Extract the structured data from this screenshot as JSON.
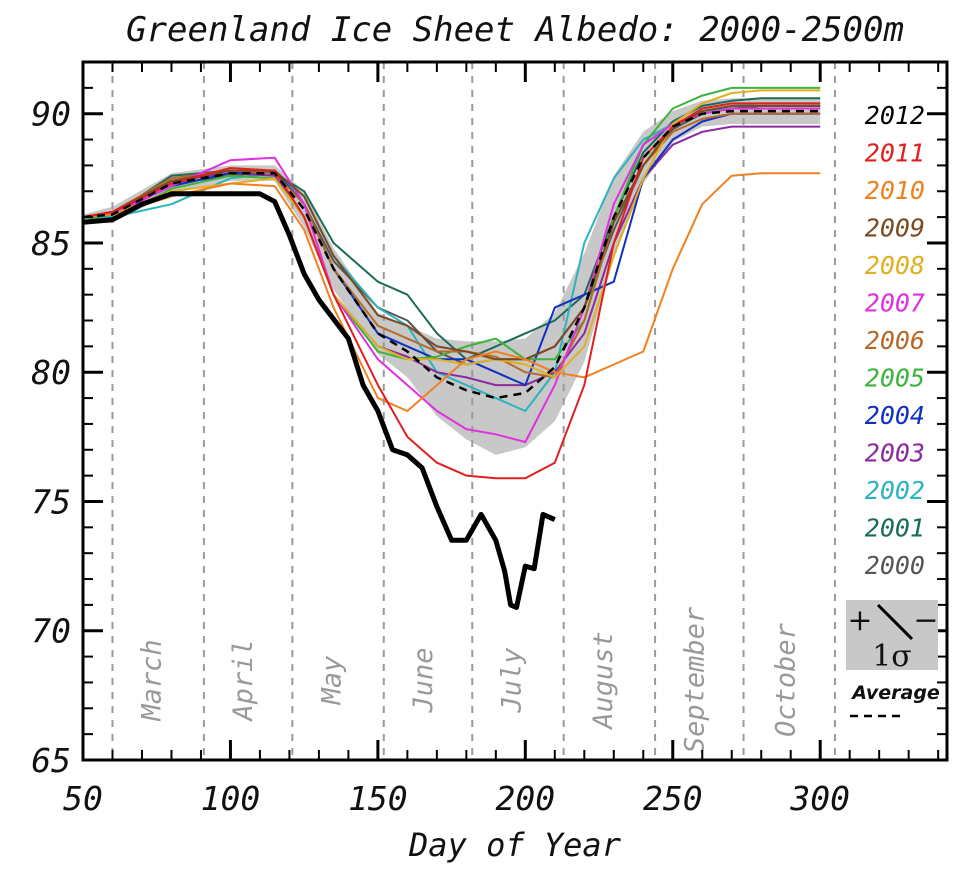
{
  "chart_data": {
    "type": "line",
    "title": "Greenland Ice Sheet Albedo: 2000-2500m",
    "xlabel": "Day of Year",
    "ylabel": "",
    "xlim": [
      50,
      343
    ],
    "ylim": [
      65,
      92
    ],
    "x_ticks": [
      50,
      100,
      150,
      200,
      250,
      300
    ],
    "x_tick_labels": [
      "50",
      "100",
      "150",
      "200",
      "250",
      "300"
    ],
    "y_ticks": [
      65,
      70,
      75,
      80,
      85,
      90
    ],
    "y_tick_labels": [
      "65",
      "70",
      "75",
      "80",
      "85",
      "90"
    ],
    "month_boundaries": [
      60,
      91,
      121,
      152,
      182,
      213,
      244,
      274,
      305
    ],
    "months": [
      {
        "label": "March",
        "day": 75
      },
      {
        "label": "April",
        "day": 106
      },
      {
        "label": "May",
        "day": 136
      },
      {
        "label": "June",
        "day": 167
      },
      {
        "label": "July",
        "day": 197
      },
      {
        "label": "August",
        "day": 228
      },
      {
        "label": "September",
        "day": 259
      },
      {
        "label": "October",
        "day": 290
      }
    ],
    "series": [
      {
        "name": "2000",
        "color": "#555555",
        "x": [
          50,
          60,
          80,
          100,
          115,
          125,
          135,
          150,
          160,
          170,
          180,
          190,
          200,
          210,
          220,
          230,
          240,
          250,
          260,
          270,
          280,
          290,
          300
        ],
        "y": [
          86,
          86.2,
          87.3,
          87.6,
          87.8,
          86.5,
          84.3,
          82.5,
          82,
          80.8,
          80.3,
          80.5,
          80.5,
          81,
          82.5,
          85.5,
          88,
          89.4,
          90,
          90.2,
          90.3,
          90.3,
          90.3
        ]
      },
      {
        "name": "2001",
        "color": "#1a6b5a",
        "x": [
          50,
          60,
          80,
          100,
          115,
          125,
          135,
          150,
          160,
          170,
          180,
          190,
          200,
          210,
          220,
          230,
          240,
          250,
          260,
          270,
          280,
          290,
          300
        ],
        "y": [
          86,
          86.1,
          87.6,
          87.8,
          87.7,
          87,
          85,
          83.5,
          83,
          81.5,
          80.5,
          81,
          81.5,
          82,
          83,
          86,
          88.5,
          89.7,
          90.3,
          90.5,
          90.6,
          90.6,
          90.6
        ]
      },
      {
        "name": "2002",
        "color": "#2bb3c0",
        "x": [
          50,
          60,
          80,
          100,
          115,
          125,
          135,
          150,
          160,
          170,
          180,
          190,
          200,
          210,
          220,
          230,
          240,
          250,
          260,
          270,
          280,
          290,
          300
        ],
        "y": [
          86,
          86,
          86.5,
          87.5,
          87.7,
          86.8,
          84.5,
          82.5,
          81.8,
          80,
          79.5,
          79,
          78.5,
          80,
          85,
          87.5,
          89,
          89.6,
          90,
          90.3,
          90.4,
          90.4,
          90.4
        ]
      },
      {
        "name": "2003",
        "color": "#8a2ba0",
        "x": [
          50,
          60,
          80,
          100,
          115,
          125,
          135,
          150,
          160,
          170,
          180,
          190,
          200,
          210,
          220,
          230,
          240,
          250,
          260,
          270,
          280,
          290,
          300
        ],
        "y": [
          86,
          86.1,
          87.4,
          87.7,
          87.6,
          86,
          83,
          81,
          80.6,
          80,
          79.8,
          79.5,
          79.5,
          80,
          81.5,
          85,
          87.5,
          88.8,
          89.3,
          89.5,
          89.5,
          89.5,
          89.5
        ]
      },
      {
        "name": "2004",
        "color": "#1030c0",
        "x": [
          50,
          60,
          80,
          100,
          115,
          125,
          135,
          150,
          160,
          170,
          180,
          190,
          200,
          210,
          220,
          230,
          240,
          250,
          260,
          270,
          280,
          290,
          300
        ],
        "y": [
          86,
          86.1,
          87.2,
          87.7,
          87.8,
          86.5,
          84,
          81.5,
          81,
          80.5,
          80.5,
          80,
          79.5,
          82.5,
          83,
          83.5,
          87.5,
          89,
          89.7,
          90,
          90,
          90,
          90
        ]
      },
      {
        "name": "2005",
        "color": "#3cb33c",
        "x": [
          50,
          60,
          80,
          100,
          115,
          125,
          135,
          150,
          160,
          170,
          180,
          190,
          200,
          210,
          220,
          230,
          240,
          250,
          260,
          270,
          280,
          290,
          300
        ],
        "y": [
          86,
          85.9,
          87.1,
          87.6,
          87.5,
          86,
          83,
          80.8,
          80.5,
          80.6,
          81,
          81.3,
          80.5,
          80.5,
          82,
          86,
          88.8,
          90.2,
          90.7,
          91,
          91,
          91,
          91
        ]
      },
      {
        "name": "2006",
        "color": "#b8692a",
        "x": [
          50,
          60,
          80,
          100,
          115,
          125,
          135,
          150,
          160,
          170,
          180,
          190,
          200,
          210,
          220,
          230,
          240,
          250,
          260,
          270,
          280,
          290,
          300
        ],
        "y": [
          86,
          86.2,
          87.5,
          87.8,
          87.7,
          86.5,
          84,
          81.8,
          81.3,
          80.8,
          80.8,
          80.6,
          80,
          79.8,
          82,
          85.8,
          88,
          89.3,
          89.8,
          90,
          90,
          90,
          90
        ]
      },
      {
        "name": "2007",
        "color": "#e030e0",
        "x": [
          50,
          60,
          80,
          100,
          115,
          125,
          135,
          150,
          160,
          170,
          180,
          190,
          200,
          210,
          220,
          230,
          240,
          250,
          260,
          270,
          280,
          290,
          300
        ],
        "y": [
          86,
          86.1,
          87.2,
          88.2,
          88.3,
          86.5,
          83,
          80.5,
          79.5,
          78.5,
          77.8,
          77.6,
          77.3,
          79.5,
          82.5,
          86.5,
          88.8,
          89.6,
          90,
          90.2,
          90.2,
          90.2,
          90.2
        ]
      },
      {
        "name": "2008",
        "color": "#e0b020",
        "x": [
          50,
          60,
          80,
          100,
          115,
          125,
          135,
          150,
          160,
          170,
          180,
          190,
          200,
          210,
          220,
          230,
          240,
          250,
          260,
          270,
          280,
          290,
          300
        ],
        "y": [
          86,
          86.1,
          87,
          87.3,
          87.5,
          86,
          83,
          81,
          80.5,
          80.5,
          80.3,
          80.5,
          80.3,
          79.8,
          81,
          84.5,
          87.5,
          89.6,
          90.4,
          90.8,
          90.9,
          90.9,
          90.9
        ]
      },
      {
        "name": "2009",
        "color": "#7a4a20",
        "x": [
          50,
          60,
          80,
          100,
          115,
          125,
          135,
          150,
          160,
          170,
          180,
          190,
          200,
          210,
          220,
          230,
          240,
          250,
          260,
          270,
          280,
          290,
          300
        ],
        "y": [
          86,
          86.2,
          87.4,
          87.8,
          87.8,
          86.8,
          84.5,
          82.2,
          81.8,
          81,
          80.8,
          80.5,
          80.5,
          81,
          82.5,
          85.8,
          88,
          89.5,
          90.1,
          90.3,
          90.3,
          90.3,
          90.3
        ]
      },
      {
        "name": "2010",
        "color": "#f08020",
        "x": [
          50,
          60,
          80,
          100,
          115,
          125,
          135,
          150,
          160,
          170,
          180,
          190,
          200,
          210,
          220,
          230,
          240,
          250,
          260,
          270,
          280,
          290,
          300
        ],
        "y": [
          86,
          86.1,
          86.8,
          87.3,
          87.2,
          85.5,
          82.5,
          79,
          78.5,
          79.5,
          80.5,
          80.8,
          80.5,
          80,
          79.8,
          80.3,
          80.8,
          84,
          86.5,
          87.6,
          87.7,
          87.7,
          87.7
        ]
      },
      {
        "name": "2011",
        "color": "#e02020",
        "x": [
          50,
          60,
          80,
          100,
          115,
          125,
          135,
          150,
          160,
          170,
          180,
          190,
          200,
          210,
          220,
          230,
          240,
          250,
          260,
          270,
          280,
          290,
          300
        ],
        "y": [
          86,
          86.2,
          87.3,
          87.9,
          87.8,
          86,
          83,
          79.5,
          77.5,
          76.5,
          76,
          75.9,
          75.9,
          76.5,
          79.5,
          85,
          88.3,
          89.5,
          90.2,
          90.4,
          90.4,
          90.4,
          90.4
        ]
      },
      {
        "name": "2012",
        "color": "#000000",
        "x": [
          50,
          60,
          70,
          80,
          90,
          100,
          110,
          115,
          120,
          125,
          130,
          140,
          145,
          150,
          155,
          160,
          165,
          170,
          175,
          180,
          185,
          190,
          193,
          195,
          197,
          200,
          203,
          206,
          210
        ],
        "y": [
          85.8,
          85.9,
          86.5,
          86.9,
          86.9,
          86.9,
          86.9,
          86.6,
          85.3,
          83.8,
          82.8,
          81.3,
          79.5,
          78.5,
          77,
          76.8,
          76.3,
          74.8,
          73.5,
          73.5,
          74.5,
          73.5,
          72.3,
          71,
          70.9,
          72.5,
          72.4,
          74.5,
          74.3
        ]
      }
    ],
    "average": {
      "label": "Average",
      "x": [
        50,
        60,
        80,
        100,
        115,
        125,
        135,
        150,
        160,
        170,
        180,
        190,
        200,
        210,
        220,
        230,
        240,
        250,
        260,
        270,
        280,
        290,
        300
      ],
      "y": [
        86,
        86.1,
        87.3,
        87.7,
        87.7,
        86.3,
        84,
        81.5,
        80.8,
        79.8,
        79.3,
        79,
        79.2,
        80.2,
        82.5,
        86,
        88.3,
        89.5,
        90,
        90.1,
        90.1,
        90.1,
        90.1
      ]
    },
    "band": {
      "label": "+\\- 1σ",
      "x": [
        50,
        60,
        80,
        100,
        115,
        125,
        135,
        150,
        160,
        170,
        180,
        190,
        200,
        210,
        220,
        230,
        240,
        250,
        260,
        270,
        280,
        290,
        300
      ],
      "upper": [
        86.1,
        86.4,
        87.7,
        88,
        88,
        87,
        84.8,
        82.3,
        81.8,
        81.3,
        81.2,
        81.2,
        81.3,
        82.3,
        84.6,
        87.6,
        89.3,
        90.1,
        90.5,
        90.6,
        90.6,
        90.6,
        90.6
      ],
      "lower": [
        85.9,
        85.8,
        86.9,
        87.4,
        87.4,
        85.6,
        83.2,
        80.7,
        79.8,
        78.3,
        77.4,
        76.8,
        77.1,
        78.1,
        80.4,
        84.4,
        87.3,
        88.9,
        89.5,
        89.6,
        89.6,
        89.6,
        89.6
      ]
    },
    "legend_order": [
      "2012",
      "2011",
      "2010",
      "2009",
      "2008",
      "2007",
      "2006",
      "2005",
      "2004",
      "2003",
      "2002",
      "2001",
      "2000"
    ],
    "legend_position": "right",
    "grid": false,
    "band_color": "#c8c8c8",
    "month_line_color": "#9a9a9a"
  },
  "legend_box": {
    "plus": "+",
    "minus": "−",
    "sigma": "1σ",
    "average_label": "Average"
  }
}
